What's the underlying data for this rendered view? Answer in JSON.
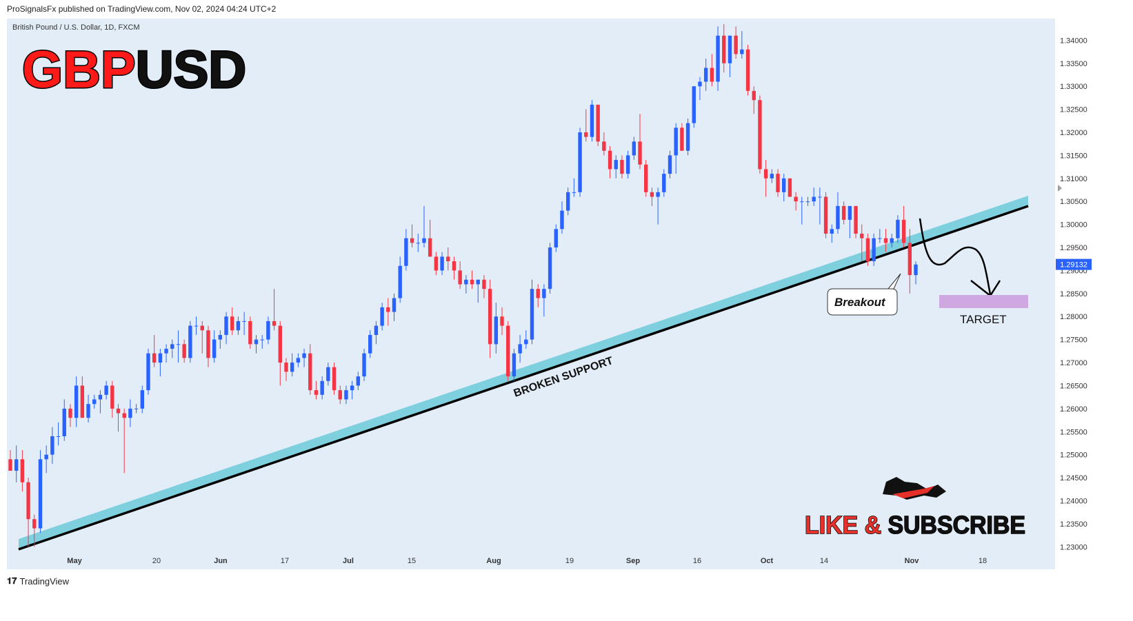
{
  "header": {
    "published": "ProSignalsFx published on TradingView.com, Nov 02, 2024 04:24 UTC+2"
  },
  "symbol": {
    "description": "British Pound / U.S. Dollar, 1D, FXCM",
    "title_red": "GBP",
    "title_black": "USD"
  },
  "annotations": {
    "broken_support": "BROKEN SUPPORT",
    "breakout": "Breakout",
    "target": "TARGET",
    "cta_red": "LIKE &",
    "cta_black": "SUBSCRIBE",
    "current_price": "1.29132"
  },
  "footer": {
    "brand": "TradingView",
    "logo": "tv-logo-icon"
  },
  "colors": {
    "up": "#2962ff",
    "down": "#f23645",
    "background": "#e2edf8",
    "support_band": "#7fd0df",
    "target_zone": "#cfa8e2",
    "price_tag": "#2962ff",
    "title_red": "#ff1a1a"
  },
  "chart_data": {
    "type": "candlestick",
    "title": "GBPUSD",
    "ylim": [
      1.2275,
      1.3435
    ],
    "y_ticks": [
      "1.34000",
      "1.33500",
      "1.33000",
      "1.32500",
      "1.32000",
      "1.31500",
      "1.31000",
      "1.30500",
      "1.30000",
      "1.29500",
      "1.29000",
      "1.28500",
      "1.28000",
      "1.27500",
      "1.27000",
      "1.26500",
      "1.26000",
      "1.25500",
      "1.25000",
      "1.24500",
      "1.24000",
      "1.23500",
      "1.23000"
    ],
    "x_ticks": [
      "May",
      "20",
      "Jun",
      "17",
      "Jul",
      "15",
      "Aug",
      "19",
      "Sep",
      "16",
      "Oct",
      "14",
      "Nov",
      "18"
    ],
    "candles": [
      [
        1.249,
        1.251,
        1.247,
        1.2465
      ],
      [
        1.2465,
        1.252,
        1.244,
        1.249
      ],
      [
        1.249,
        1.251,
        1.242,
        1.244
      ],
      [
        1.244,
        1.245,
        1.23,
        1.236
      ],
      [
        1.236,
        1.237,
        1.23,
        1.234
      ],
      [
        1.234,
        1.251,
        1.233,
        1.249
      ],
      [
        1.249,
        1.252,
        1.246,
        1.25
      ],
      [
        1.25,
        1.256,
        1.248,
        1.254
      ],
      [
        1.254,
        1.257,
        1.252,
        1.254
      ],
      [
        1.254,
        1.262,
        1.253,
        1.26
      ],
      [
        1.26,
        1.261,
        1.256,
        1.258
      ],
      [
        1.258,
        1.267,
        1.256,
        1.265
      ],
      [
        1.265,
        1.267,
        1.258,
        1.258
      ],
      [
        1.258,
        1.263,
        1.257,
        1.261
      ],
      [
        1.261,
        1.263,
        1.26,
        1.262
      ],
      [
        1.262,
        1.264,
        1.259,
        1.263
      ],
      [
        1.263,
        1.266,
        1.262,
        1.265
      ],
      [
        1.265,
        1.266,
        1.258,
        1.26
      ],
      [
        1.26,
        1.261,
        1.255,
        1.259
      ],
      [
        1.259,
        1.26,
        1.246,
        1.258
      ],
      [
        1.258,
        1.262,
        1.256,
        1.26
      ],
      [
        1.26,
        1.261,
        1.259,
        1.26
      ],
      [
        1.26,
        1.265,
        1.259,
        1.264
      ],
      [
        1.264,
        1.273,
        1.263,
        1.272
      ],
      [
        1.272,
        1.276,
        1.269,
        1.27
      ],
      [
        1.27,
        1.273,
        1.267,
        1.272
      ],
      [
        1.272,
        1.274,
        1.27,
        1.273
      ],
      [
        1.273,
        1.275,
        1.271,
        1.274
      ],
      [
        1.274,
        1.277,
        1.27,
        1.274
      ],
      [
        1.274,
        1.275,
        1.27,
        1.271
      ],
      [
        1.271,
        1.279,
        1.27,
        1.278
      ],
      [
        1.278,
        1.28,
        1.276,
        1.278
      ],
      [
        1.278,
        1.279,
        1.272,
        1.277
      ],
      [
        1.277,
        1.278,
        1.269,
        1.271
      ],
      [
        1.271,
        1.277,
        1.27,
        1.275
      ],
      [
        1.275,
        1.277,
        1.273,
        1.276
      ],
      [
        1.276,
        1.281,
        1.274,
        1.28
      ],
      [
        1.28,
        1.282,
        1.276,
        1.277
      ],
      [
        1.277,
        1.28,
        1.276,
        1.279
      ],
      [
        1.279,
        1.281,
        1.276,
        1.279
      ],
      [
        1.279,
        1.28,
        1.273,
        1.274
      ],
      [
        1.274,
        1.276,
        1.272,
        1.275
      ],
      [
        1.275,
        1.276,
        1.273,
        1.275
      ],
      [
        1.275,
        1.28,
        1.274,
        1.279
      ],
      [
        1.279,
        1.286,
        1.277,
        1.278
      ],
      [
        1.278,
        1.279,
        1.265,
        1.27
      ],
      [
        1.27,
        1.271,
        1.266,
        1.268
      ],
      [
        1.268,
        1.272,
        1.267,
        1.27
      ],
      [
        1.27,
        1.272,
        1.269,
        1.271
      ],
      [
        1.271,
        1.273,
        1.269,
        1.272
      ],
      [
        1.272,
        1.274,
        1.263,
        1.264
      ],
      [
        1.264,
        1.266,
        1.262,
        1.263
      ],
      [
        1.263,
        1.267,
        1.262,
        1.266
      ],
      [
        1.266,
        1.27,
        1.265,
        1.269
      ],
      [
        1.269,
        1.27,
        1.263,
        1.264
      ],
      [
        1.264,
        1.265,
        1.261,
        1.262
      ],
      [
        1.262,
        1.265,
        1.261,
        1.264
      ],
      [
        1.264,
        1.266,
        1.262,
        1.265
      ],
      [
        1.265,
        1.268,
        1.264,
        1.267
      ],
      [
        1.267,
        1.273,
        1.266,
        1.272
      ],
      [
        1.272,
        1.277,
        1.271,
        1.276
      ],
      [
        1.276,
        1.279,
        1.274,
        1.278
      ],
      [
        1.278,
        1.283,
        1.277,
        1.282
      ],
      [
        1.282,
        1.284,
        1.278,
        1.281
      ],
      [
        1.281,
        1.285,
        1.279,
        1.284
      ],
      [
        1.284,
        1.293,
        1.283,
        1.291
      ],
      [
        1.291,
        1.299,
        1.29,
        1.297
      ],
      [
        1.297,
        1.3,
        1.295,
        1.296
      ],
      [
        1.296,
        1.298,
        1.294,
        1.296
      ],
      [
        1.296,
        1.304,
        1.295,
        1.297
      ],
      [
        1.297,
        1.301,
        1.293,
        1.293
      ],
      [
        1.293,
        1.294,
        1.289,
        1.29
      ],
      [
        1.29,
        1.294,
        1.289,
        1.293
      ],
      [
        1.293,
        1.295,
        1.29,
        1.292
      ],
      [
        1.292,
        1.293,
        1.288,
        1.29
      ],
      [
        1.29,
        1.292,
        1.286,
        1.287
      ],
      [
        1.287,
        1.289,
        1.285,
        1.288
      ],
      [
        1.288,
        1.29,
        1.286,
        1.287
      ],
      [
        1.287,
        1.288,
        1.283,
        1.288
      ],
      [
        1.288,
        1.289,
        1.284,
        1.286
      ],
      [
        1.286,
        1.288,
        1.271,
        1.274
      ],
      [
        1.274,
        1.283,
        1.272,
        1.28
      ],
      [
        1.28,
        1.282,
        1.276,
        1.278
      ],
      [
        1.278,
        1.279,
        1.266,
        1.267
      ],
      [
        1.267,
        1.273,
        1.266,
        1.272
      ],
      [
        1.272,
        1.276,
        1.27,
        1.274
      ],
      [
        1.274,
        1.277,
        1.273,
        1.275
      ],
      [
        1.275,
        1.288,
        1.274,
        1.286
      ],
      [
        1.286,
        1.287,
        1.282,
        1.284
      ],
      [
        1.284,
        1.287,
        1.28,
        1.286
      ],
      [
        1.286,
        1.296,
        1.285,
        1.295
      ],
      [
        1.295,
        1.3,
        1.294,
        1.299
      ],
      [
        1.299,
        1.305,
        1.298,
        1.303
      ],
      [
        1.303,
        1.308,
        1.302,
        1.307
      ],
      [
        1.307,
        1.31,
        1.306,
        1.307
      ],
      [
        1.307,
        1.321,
        1.306,
        1.32
      ],
      [
        1.32,
        1.325,
        1.318,
        1.319
      ],
      [
        1.319,
        1.327,
        1.318,
        1.326
      ],
      [
        1.326,
        1.326,
        1.317,
        1.318
      ],
      [
        1.318,
        1.32,
        1.315,
        1.316
      ],
      [
        1.316,
        1.317,
        1.31,
        1.312
      ],
      [
        1.312,
        1.315,
        1.31,
        1.314
      ],
      [
        1.314,
        1.315,
        1.31,
        1.311
      ],
      [
        1.311,
        1.316,
        1.31,
        1.315
      ],
      [
        1.315,
        1.319,
        1.314,
        1.318
      ],
      [
        1.318,
        1.324,
        1.312,
        1.313
      ],
      [
        1.313,
        1.314,
        1.306,
        1.307
      ],
      [
        1.307,
        1.308,
        1.304,
        1.306
      ],
      [
        1.306,
        1.308,
        1.3,
        1.307
      ],
      [
        1.307,
        1.312,
        1.306,
        1.311
      ],
      [
        1.311,
        1.316,
        1.31,
        1.315
      ],
      [
        1.315,
        1.322,
        1.311,
        1.321
      ],
      [
        1.321,
        1.322,
        1.316,
        1.316
      ],
      [
        1.316,
        1.323,
        1.315,
        1.322
      ],
      [
        1.322,
        1.33,
        1.321,
        1.33
      ],
      [
        1.33,
        1.332,
        1.327,
        1.331
      ],
      [
        1.331,
        1.336,
        1.329,
        1.334
      ],
      [
        1.334,
        1.337,
        1.33,
        1.331
      ],
      [
        1.331,
        1.343,
        1.329,
        1.341
      ],
      [
        1.341,
        1.3435,
        1.333,
        1.335
      ],
      [
        1.335,
        1.341,
        1.332,
        1.341
      ],
      [
        1.341,
        1.343,
        1.336,
        1.337
      ],
      [
        1.337,
        1.342,
        1.336,
        1.338
      ],
      [
        1.338,
        1.339,
        1.328,
        1.329
      ],
      [
        1.329,
        1.33,
        1.324,
        1.327
      ],
      [
        1.327,
        1.328,
        1.311,
        1.312
      ],
      [
        1.312,
        1.314,
        1.306,
        1.31
      ],
      [
        1.31,
        1.312,
        1.309,
        1.311
      ],
      [
        1.311,
        1.312,
        1.306,
        1.307
      ],
      [
        1.307,
        1.311,
        1.305,
        1.31
      ],
      [
        1.31,
        1.31,
        1.306,
        1.306
      ],
      [
        1.306,
        1.307,
        1.303,
        1.305
      ],
      [
        1.305,
        1.306,
        1.3,
        1.305
      ],
      [
        1.305,
        1.306,
        1.304,
        1.305
      ],
      [
        1.305,
        1.308,
        1.304,
        1.306
      ],
      [
        1.306,
        1.308,
        1.3,
        1.306
      ],
      [
        1.306,
        1.307,
        1.297,
        1.298
      ],
      [
        1.298,
        1.3,
        1.296,
        1.299
      ],
      [
        1.299,
        1.307,
        1.298,
        1.304
      ],
      [
        1.304,
        1.305,
        1.3,
        1.301
      ],
      [
        1.301,
        1.304,
        1.297,
        1.304
      ],
      [
        1.304,
        1.304,
        1.297,
        1.298
      ],
      [
        1.298,
        1.3,
        1.292,
        1.297
      ],
      [
        1.297,
        1.298,
        1.291,
        1.292
      ],
      [
        1.292,
        1.298,
        1.291,
        1.297
      ],
      [
        1.297,
        1.299,
        1.296,
        1.297
      ],
      [
        1.297,
        1.299,
        1.294,
        1.296
      ],
      [
        1.296,
        1.298,
        1.295,
        1.297
      ],
      [
        1.297,
        1.302,
        1.296,
        1.301
      ],
      [
        1.301,
        1.304,
        1.295,
        1.296
      ],
      [
        1.296,
        1.299,
        1.285,
        1.289
      ],
      [
        1.289,
        1.292,
        1.287,
        1.2913
      ]
    ]
  }
}
